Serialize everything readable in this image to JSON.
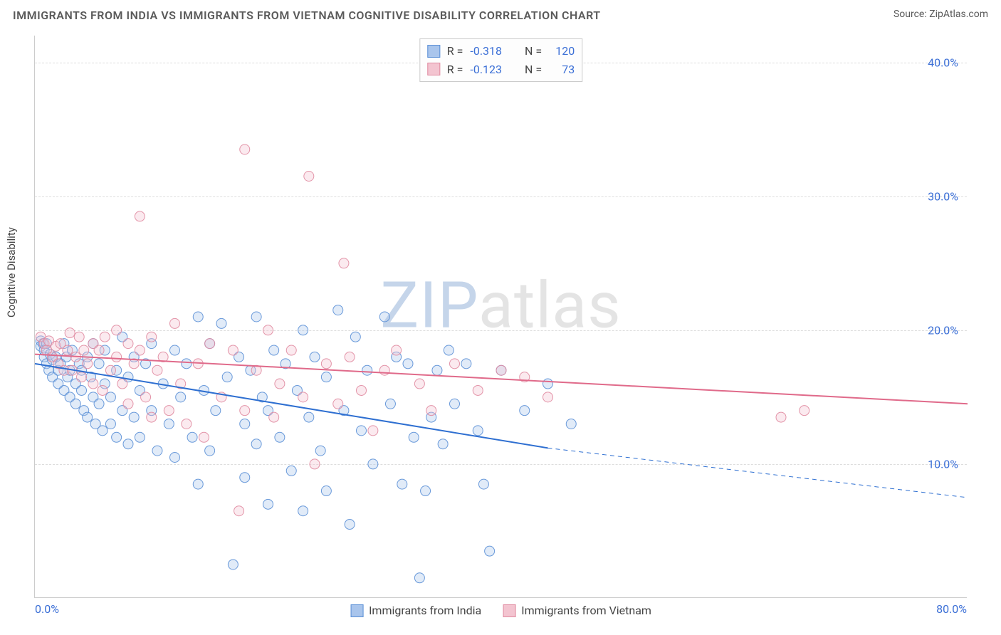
{
  "title": "IMMIGRANTS FROM INDIA VS IMMIGRANTS FROM VIETNAM COGNITIVE DISABILITY CORRELATION CHART",
  "source": "Source: ZipAtlas.com",
  "y_axis_label": "Cognitive Disability",
  "watermark": {
    "part1": "ZIP",
    "part2": "atlas"
  },
  "chart": {
    "type": "scatter",
    "xlim": [
      0,
      80
    ],
    "ylim": [
      0,
      42
    ],
    "y_ticks": [
      10,
      20,
      30,
      40
    ],
    "y_tick_labels": [
      "10.0%",
      "20.0%",
      "30.0%",
      "40.0%"
    ],
    "x_ticks": [
      0,
      80
    ],
    "x_tick_labels": [
      "0.0%",
      "80.0%"
    ],
    "background_color": "#ffffff",
    "grid_color": "#dddddd",
    "axis_color": "#cccccc",
    "tick_label_color": "#3b6fd6",
    "marker_radius": 7,
    "marker_fill_opacity": 0.35,
    "marker_stroke_opacity": 0.9,
    "line_width": 2,
    "series": [
      {
        "name": "Immigrants from India",
        "color_fill": "#a9c5ec",
        "color_stroke": "#5a8fd6",
        "line_color": "#2e6fd1",
        "R": "-0.318",
        "N": "120",
        "regression": {
          "x1": 0,
          "y1": 17.5,
          "x2": 44,
          "y2": 11.2,
          "ext_x2": 80,
          "ext_y2": 7.5
        },
        "points": [
          [
            0.5,
            19.2
          ],
          [
            0.5,
            18.8
          ],
          [
            0.7,
            19.0
          ],
          [
            0.8,
            18.5
          ],
          [
            0.8,
            18.0
          ],
          [
            1.0,
            19.0
          ],
          [
            1.0,
            17.5
          ],
          [
            1.2,
            17.0
          ],
          [
            1.3,
            18.2
          ],
          [
            1.5,
            17.8
          ],
          [
            1.5,
            16.5
          ],
          [
            1.8,
            18.0
          ],
          [
            2.0,
            17.0
          ],
          [
            2.0,
            16.0
          ],
          [
            2.2,
            17.5
          ],
          [
            2.5,
            19.0
          ],
          [
            2.5,
            15.5
          ],
          [
            2.7,
            18.0
          ],
          [
            2.8,
            16.5
          ],
          [
            3.0,
            17.0
          ],
          [
            3.0,
            15.0
          ],
          [
            3.2,
            18.5
          ],
          [
            3.5,
            16.0
          ],
          [
            3.5,
            14.5
          ],
          [
            3.8,
            17.5
          ],
          [
            4.0,
            15.5
          ],
          [
            4.0,
            17.0
          ],
          [
            4.2,
            14.0
          ],
          [
            4.5,
            18.0
          ],
          [
            4.5,
            13.5
          ],
          [
            4.8,
            16.5
          ],
          [
            5.0,
            15.0
          ],
          [
            5.0,
            19.0
          ],
          [
            5.2,
            13.0
          ],
          [
            5.5,
            17.5
          ],
          [
            5.5,
            14.5
          ],
          [
            5.8,
            12.5
          ],
          [
            6.0,
            16.0
          ],
          [
            6.0,
            18.5
          ],
          [
            6.5,
            15.0
          ],
          [
            6.5,
            13.0
          ],
          [
            7.0,
            17.0
          ],
          [
            7.0,
            12.0
          ],
          [
            7.5,
            19.5
          ],
          [
            7.5,
            14.0
          ],
          [
            8.0,
            16.5
          ],
          [
            8.0,
            11.5
          ],
          [
            8.5,
            18.0
          ],
          [
            8.5,
            13.5
          ],
          [
            9.0,
            15.5
          ],
          [
            9.0,
            12.0
          ],
          [
            9.5,
            17.5
          ],
          [
            10.0,
            14.0
          ],
          [
            10.0,
            19.0
          ],
          [
            10.5,
            11.0
          ],
          [
            11.0,
            16.0
          ],
          [
            11.5,
            13.0
          ],
          [
            12.0,
            18.5
          ],
          [
            12.0,
            10.5
          ],
          [
            12.5,
            15.0
          ],
          [
            13.0,
            17.5
          ],
          [
            13.5,
            12.0
          ],
          [
            14.0,
            21.0
          ],
          [
            14.0,
            8.5
          ],
          [
            14.5,
            15.5
          ],
          [
            15.0,
            19.0
          ],
          [
            15.0,
            11.0
          ],
          [
            15.5,
            14.0
          ],
          [
            16.0,
            20.5
          ],
          [
            16.5,
            16.5
          ],
          [
            17.0,
            2.5
          ],
          [
            17.5,
            18.0
          ],
          [
            18.0,
            13.0
          ],
          [
            18.0,
            9.0
          ],
          [
            18.5,
            17.0
          ],
          [
            19.0,
            11.5
          ],
          [
            19.0,
            21.0
          ],
          [
            19.5,
            15.0
          ],
          [
            20.0,
            7.0
          ],
          [
            20.0,
            14.0
          ],
          [
            20.5,
            18.5
          ],
          [
            21.0,
            12.0
          ],
          [
            21.5,
            17.5
          ],
          [
            22.0,
            9.5
          ],
          [
            22.5,
            15.5
          ],
          [
            23.0,
            20.0
          ],
          [
            23.0,
            6.5
          ],
          [
            23.5,
            13.5
          ],
          [
            24.0,
            18.0
          ],
          [
            24.5,
            11.0
          ],
          [
            25.0,
            16.5
          ],
          [
            25.0,
            8.0
          ],
          [
            26.0,
            21.5
          ],
          [
            26.5,
            14.0
          ],
          [
            27.0,
            5.5
          ],
          [
            27.5,
            19.5
          ],
          [
            28.0,
            12.5
          ],
          [
            28.5,
            17.0
          ],
          [
            29.0,
            10.0
          ],
          [
            30.0,
            21.0
          ],
          [
            30.5,
            14.5
          ],
          [
            31.0,
            18.0
          ],
          [
            31.5,
            8.5
          ],
          [
            32.0,
            17.5
          ],
          [
            32.5,
            12.0
          ],
          [
            33.0,
            1.5
          ],
          [
            33.5,
            8.0
          ],
          [
            34.0,
            13.5
          ],
          [
            34.5,
            17.0
          ],
          [
            35.0,
            11.5
          ],
          [
            35.5,
            18.5
          ],
          [
            36.0,
            14.5
          ],
          [
            37.0,
            17.5
          ],
          [
            38.0,
            12.5
          ],
          [
            38.5,
            8.5
          ],
          [
            39.0,
            3.5
          ],
          [
            40.0,
            17.0
          ],
          [
            42.0,
            14.0
          ],
          [
            44.0,
            16.0
          ],
          [
            46.0,
            13.0
          ]
        ]
      },
      {
        "name": "Immigrants from Vietnam",
        "color_fill": "#f3c4d0",
        "color_stroke": "#e08aa0",
        "line_color": "#e06a8a",
        "R": "-0.123",
        "N": "73",
        "regression": {
          "x1": 0,
          "y1": 18.2,
          "x2": 80,
          "y2": 14.5
        },
        "points": [
          [
            0.5,
            19.5
          ],
          [
            0.8,
            19.0
          ],
          [
            1.0,
            18.5
          ],
          [
            1.2,
            19.2
          ],
          [
            1.5,
            18.0
          ],
          [
            1.8,
            18.8
          ],
          [
            2.0,
            17.5
          ],
          [
            2.2,
            19.0
          ],
          [
            2.5,
            17.0
          ],
          [
            2.8,
            18.5
          ],
          [
            3.0,
            19.8
          ],
          [
            3.2,
            17.0
          ],
          [
            3.5,
            18.0
          ],
          [
            3.8,
            19.5
          ],
          [
            4.0,
            16.5
          ],
          [
            4.2,
            18.5
          ],
          [
            4.5,
            17.5
          ],
          [
            5.0,
            19.0
          ],
          [
            5.0,
            16.0
          ],
          [
            5.5,
            18.5
          ],
          [
            5.8,
            15.5
          ],
          [
            6.0,
            19.5
          ],
          [
            6.5,
            17.0
          ],
          [
            7.0,
            18.0
          ],
          [
            7.0,
            20.0
          ],
          [
            7.5,
            16.0
          ],
          [
            8.0,
            19.0
          ],
          [
            8.0,
            14.5
          ],
          [
            8.5,
            17.5
          ],
          [
            9.0,
            18.5
          ],
          [
            9.0,
            28.5
          ],
          [
            9.5,
            15.0
          ],
          [
            10.0,
            19.5
          ],
          [
            10.0,
            13.5
          ],
          [
            10.5,
            17.0
          ],
          [
            11.0,
            18.0
          ],
          [
            11.5,
            14.0
          ],
          [
            12.0,
            20.5
          ],
          [
            12.5,
            16.0
          ],
          [
            13.0,
            13.0
          ],
          [
            14.0,
            17.5
          ],
          [
            14.5,
            12.0
          ],
          [
            15.0,
            19.0
          ],
          [
            16.0,
            15.0
          ],
          [
            17.0,
            18.5
          ],
          [
            17.5,
            6.5
          ],
          [
            18.0,
            33.5
          ],
          [
            18.0,
            14.0
          ],
          [
            19.0,
            17.0
          ],
          [
            20.0,
            20.0
          ],
          [
            20.5,
            13.5
          ],
          [
            21.0,
            16.0
          ],
          [
            22.0,
            18.5
          ],
          [
            23.0,
            15.0
          ],
          [
            23.5,
            31.5
          ],
          [
            24.0,
            10.0
          ],
          [
            25.0,
            17.5
          ],
          [
            26.0,
            14.5
          ],
          [
            26.5,
            25.0
          ],
          [
            27.0,
            18.0
          ],
          [
            28.0,
            15.5
          ],
          [
            29.0,
            12.5
          ],
          [
            30.0,
            17.0
          ],
          [
            31.0,
            18.5
          ],
          [
            33.0,
            16.0
          ],
          [
            34.0,
            14.0
          ],
          [
            36.0,
            17.5
          ],
          [
            38.0,
            15.5
          ],
          [
            40.0,
            17.0
          ],
          [
            42.0,
            16.5
          ],
          [
            44.0,
            15.0
          ],
          [
            64.0,
            13.5
          ],
          [
            66.0,
            14.0
          ]
        ]
      }
    ]
  },
  "legend_top": {
    "border_color": "#cccccc",
    "labels": {
      "R": "R =",
      "N": "N ="
    }
  }
}
